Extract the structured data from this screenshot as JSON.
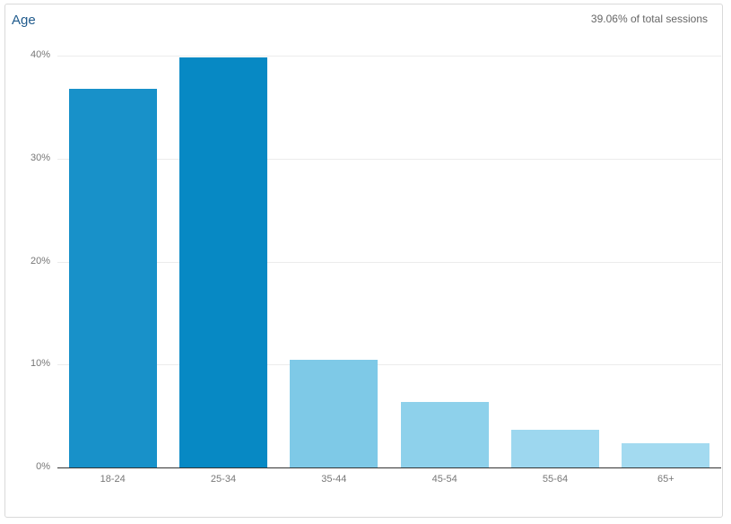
{
  "header": {
    "title": "Age",
    "subtitle": "39.06% of total sessions"
  },
  "chart_data": {
    "type": "bar",
    "title": "Age",
    "subtitle": "39.06% of total sessions",
    "xlabel": "",
    "ylabel": "",
    "categories": [
      "18-24",
      "25-34",
      "35-44",
      "45-54",
      "55-64",
      "65+"
    ],
    "values": [
      36.8,
      39.8,
      10.5,
      6.4,
      3.7,
      2.35
    ],
    "unit": "%",
    "ylim": [
      0,
      40
    ],
    "yticks": [
      "0%",
      "10%",
      "20%",
      "30%",
      "40%"
    ],
    "grid": true,
    "legend": "none",
    "colors": [
      "#1891c9",
      "#0789c4",
      "#7ec9e7",
      "#8ed1eb",
      "#9dd7ef",
      "#a3daf0"
    ]
  }
}
